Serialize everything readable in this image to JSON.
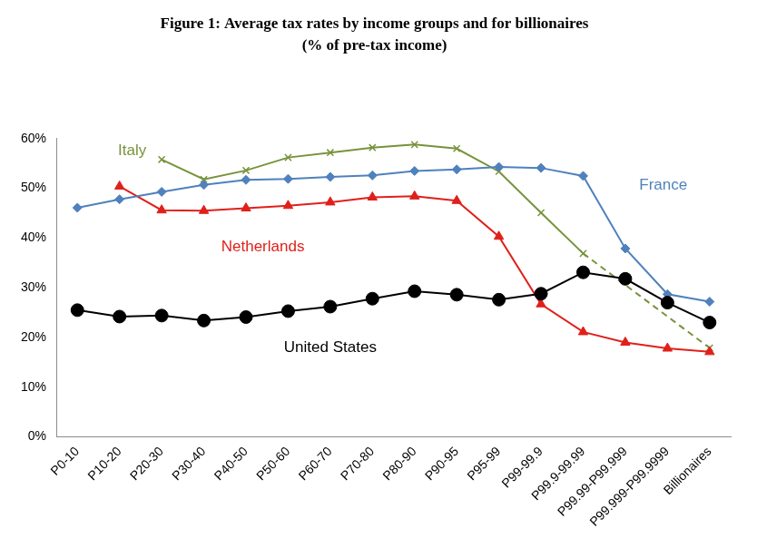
{
  "chart_data": {
    "type": "line",
    "title": "Figure 1: Average tax rates by income groups and for billionaires",
    "subtitle": "(% of pre-tax income)",
    "categories": [
      "P0-10",
      "P10-20",
      "P20-30",
      "P30-40",
      "P40-50",
      "P50-60",
      "P60-70",
      "P70-80",
      "P80-90",
      "P90-95",
      "P95-99",
      "P99-99.9",
      "P99.9-99.99",
      "P99.99-P99.999",
      "P99.999-P99.9999",
      "Billionaires"
    ],
    "series": [
      {
        "name": "United States",
        "color": "#000000",
        "marker": "circle",
        "values": [
          25.5,
          24.2,
          24.4,
          23.4,
          24.1,
          25.3,
          26.2,
          27.8,
          29.3,
          28.6,
          27.6,
          28.8,
          33.1,
          31.8,
          27.0,
          23.0
        ]
      },
      {
        "name": "France",
        "color": "#4f81bd",
        "marker": "diamond",
        "values": [
          46.1,
          47.8,
          49.3,
          50.7,
          51.7,
          51.9,
          52.3,
          52.6,
          53.5,
          53.8,
          54.3,
          54.1,
          52.5,
          37.9,
          28.7,
          27.2
        ]
      },
      {
        "name": "Netherlands",
        "color": "#e0201b",
        "marker": "triangle",
        "values": [
          null,
          50.4,
          45.6,
          45.5,
          46.0,
          46.5,
          47.2,
          48.2,
          48.4,
          47.5,
          40.3,
          26.7,
          21.1,
          19.0,
          17.8,
          17.1
        ]
      },
      {
        "name": "Italy",
        "color": "#77933c",
        "marker": "x",
        "values": [
          null,
          null,
          55.8,
          51.8,
          53.6,
          56.2,
          57.2,
          58.2,
          58.8,
          58.0,
          53.4,
          45.1,
          36.9,
          null,
          null,
          17.9
        ]
      }
    ],
    "ylim": [
      0,
      60
    ],
    "yticks": [
      {
        "value": 0,
        "label": "0%"
      },
      {
        "value": 10,
        "label": "10%"
      },
      {
        "value": 20,
        "label": "20%"
      },
      {
        "value": 30,
        "label": "30%"
      },
      {
        "value": 40,
        "label": "40%"
      },
      {
        "value": 50,
        "label": "50%"
      },
      {
        "value": 60,
        "label": "60%"
      }
    ],
    "grid": false
  }
}
